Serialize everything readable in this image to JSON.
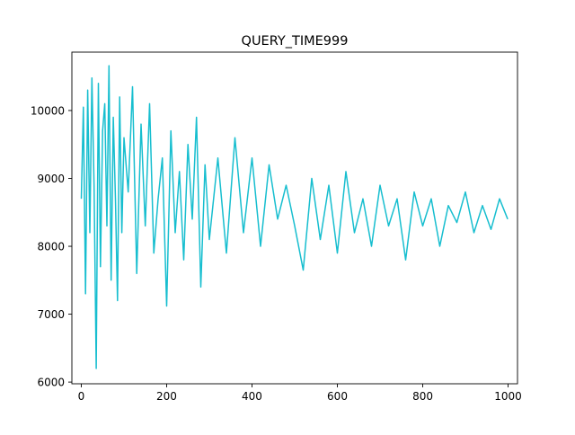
{
  "chart_data": {
    "type": "line",
    "title": "QUERY_TIME999",
    "xlabel": "",
    "ylabel": "",
    "xlim": [
      -22,
      1022
    ],
    "ylim": [
      5975,
      10860
    ],
    "x_ticks": [
      0,
      200,
      400,
      600,
      800,
      1000
    ],
    "x_tick_labels": [
      "0",
      "200",
      "400",
      "600",
      "800",
      "1000"
    ],
    "y_ticks": [
      6000,
      7000,
      8000,
      9000,
      10000
    ],
    "y_tick_labels": [
      "6000",
      "7000",
      "8000",
      "9000",
      "10000"
    ],
    "grid": false,
    "legend": "none",
    "series_color": "#17becf",
    "series": [
      {
        "x": [
          0,
          5,
          10,
          15,
          20,
          25,
          30,
          35,
          40,
          45,
          50,
          55,
          60,
          65,
          70,
          75,
          80,
          85,
          90,
          95,
          100,
          110,
          120,
          130,
          140,
          150,
          160,
          170,
          180,
          190,
          200,
          210,
          220,
          230,
          240,
          250,
          260,
          270,
          280,
          290,
          300,
          320,
          340,
          360,
          380,
          400,
          420,
          440,
          460,
          480,
          500,
          520,
          540,
          560,
          580,
          600,
          620,
          640,
          660,
          680,
          700,
          720,
          740,
          760,
          780,
          800,
          820,
          840,
          860,
          880,
          900,
          920,
          940,
          960,
          980,
          999
        ],
        "values": [
          8700,
          10050,
          7300,
          10300,
          8200,
          10480,
          8900,
          6200,
          10400,
          7700,
          9700,
          10100,
          8300,
          10660,
          7500,
          9900,
          8700,
          7200,
          10200,
          8200,
          9600,
          8800,
          10350,
          7600,
          9800,
          8300,
          10100,
          7900,
          8700,
          9300,
          7120,
          9700,
          8200,
          9100,
          7800,
          9500,
          8400,
          9900,
          7400,
          9200,
          8100,
          9300,
          7900,
          9600,
          8200,
          9300,
          8000,
          9200,
          8400,
          8900,
          8300,
          7650,
          9000,
          8100,
          8900,
          7900,
          9100,
          8200,
          8700,
          8000,
          8900,
          8300,
          8700,
          7800,
          8800,
          8300,
          8700,
          8000,
          8600,
          8350,
          8800,
          8200,
          8600,
          8250,
          8700,
          8400
        ]
      }
    ]
  }
}
